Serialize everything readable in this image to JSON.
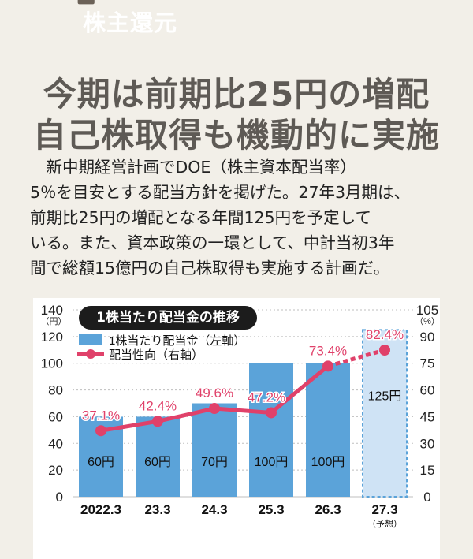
{
  "tag": {
    "label": "株主還元",
    "color": "#6b6157"
  },
  "headline": {
    "line1": "今期は前期比25円の増配",
    "line2": "自己株取得も機動的に実施"
  },
  "body": {
    "lines": [
      "　新中期経営計画でDOE（株主資本配当率）",
      "5％を目安とする配当方針を掲げた。27年3月期は、",
      "前期比25円の増配となる年間125円を予定して",
      "いる。また、資本政策の一環として、中計当初3年",
      "間で総額15億円の自己株取得も実施する計画だ。"
    ]
  },
  "chart_data": {
    "type": "bar",
    "title": "1株当たり配当金の推移",
    "categories": [
      "2022.3",
      "23.3",
      "24.3",
      "25.3",
      "26.3",
      "27.3"
    ],
    "category_notes": [
      "",
      "",
      "",
      "",
      "",
      "（予想）"
    ],
    "left_axis": {
      "unit": "（円）",
      "min": 0,
      "max": 140,
      "ticks": [
        0,
        20,
        40,
        60,
        80,
        100,
        120,
        140
      ]
    },
    "right_axis": {
      "unit": "（%）",
      "min": 0,
      "max": 105,
      "ticks": [
        0,
        15,
        30,
        45,
        60,
        75,
        90,
        105
      ]
    },
    "grid": true,
    "legend_position": "top-left",
    "series": [
      {
        "name": "1株当たり配当金（左軸）",
        "type": "bar",
        "axis": "left",
        "values": [
          60,
          60,
          70,
          100,
          100,
          125
        ],
        "labels": [
          "60円",
          "60円",
          "70円",
          "100円",
          "100円",
          "125円"
        ],
        "color": "#5ba3d9",
        "forecast_color": "#cfe3f5"
      },
      {
        "name": "配当性向（右軸）",
        "type": "line",
        "axis": "right",
        "values": [
          37.1,
          42.4,
          49.6,
          47.2,
          73.4,
          82.4
        ],
        "labels": [
          "37.1%",
          "42.4%",
          "49.6%",
          "47.2%",
          "73.4%",
          "82.4%"
        ],
        "color": "#e0416a"
      }
    ]
  }
}
